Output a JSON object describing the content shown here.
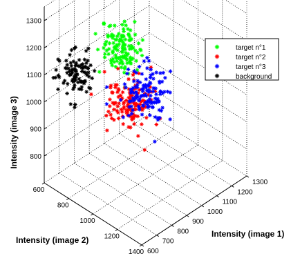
{
  "chart_data": {
    "type": "scatter",
    "projection": "3d",
    "axes": {
      "x": {
        "label": "Intensity (image 1)",
        "ticks": [
          600,
          700,
          800,
          900,
          1000,
          1100,
          1200,
          1300
        ],
        "range": [
          600,
          1300
        ]
      },
      "y": {
        "label": "Intensity (image 2)",
        "ticks": [
          600,
          800,
          1000,
          1200,
          1400
        ],
        "range": [
          600,
          1400
        ]
      },
      "z": {
        "label": "Intensity (image 3)",
        "ticks": [
          800,
          900,
          1000,
          1100,
          1200,
          1300
        ],
        "range": [
          700,
          1350
        ]
      }
    },
    "grid": true,
    "legend": {
      "location": "top-right"
    },
    "series": [
      {
        "name": "target n°1",
        "color": "#00ff00",
        "marker": "star",
        "cluster": {
          "center": [
            850,
            920,
            1200
          ],
          "spread": [
            45,
            65,
            40
          ],
          "count": 130
        }
      },
      {
        "name": "target n°2",
        "color": "#ff0000",
        "marker": "star",
        "cluster": {
          "center": [
            870,
            970,
            1000
          ],
          "spread": [
            50,
            70,
            45
          ],
          "count": 130
        }
      },
      {
        "name": "target n°3",
        "color": "#0000ff",
        "marker": "star",
        "cluster": {
          "center": [
            990,
            950,
            980
          ],
          "spread": [
            50,
            70,
            45
          ],
          "count": 130
        }
      },
      {
        "name": "background",
        "color": "#000000",
        "marker": "star",
        "cluster": {
          "center": [
            780,
            650,
            1050
          ],
          "spread": [
            45,
            50,
            35
          ],
          "count": 100
        }
      }
    ]
  }
}
